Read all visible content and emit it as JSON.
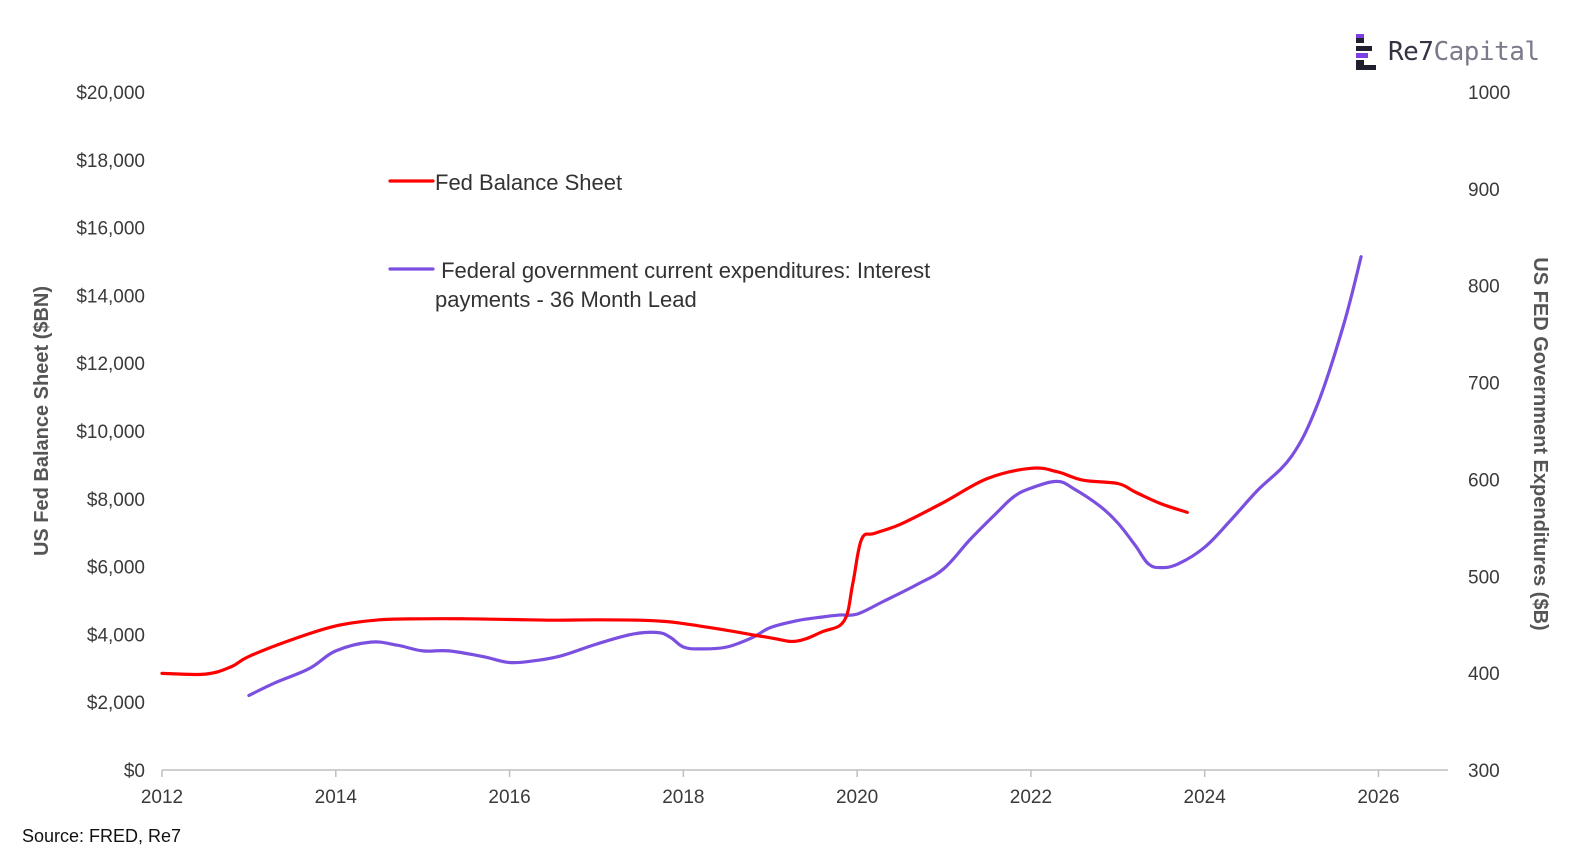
{
  "brand": {
    "name_part1": "Re7",
    "name_part2": "Capital",
    "colors": {
      "dark": "#1f1f2e",
      "purple": "#7b3fe4"
    }
  },
  "source": "Source: FRED, Re7",
  "chart_data": {
    "type": "line",
    "title": "",
    "xlabel": "",
    "ylabel": "US Fed Balance Sheet ($BN)",
    "ylabel_right": "US FED Government Expenditures ($B)",
    "xlim": [
      2012,
      2026.8
    ],
    "ylim": [
      0,
      20000
    ],
    "ylim_right": [
      300,
      1000
    ],
    "x_ticks": [
      {
        "value": 2012,
        "label": "2012"
      },
      {
        "value": 2014,
        "label": "2014"
      },
      {
        "value": 2016,
        "label": "2016"
      },
      {
        "value": 2018,
        "label": "2018"
      },
      {
        "value": 2020,
        "label": "2020"
      },
      {
        "value": 2022,
        "label": "2022"
      },
      {
        "value": 2024,
        "label": "2024"
      },
      {
        "value": 2026,
        "label": "2026"
      }
    ],
    "y_ticks": [
      {
        "value": 0,
        "label": "$0"
      },
      {
        "value": 2000,
        "label": "$2,000"
      },
      {
        "value": 4000,
        "label": "$4,000"
      },
      {
        "value": 6000,
        "label": "$6,000"
      },
      {
        "value": 8000,
        "label": "$8,000"
      },
      {
        "value": 10000,
        "label": "$10,000"
      },
      {
        "value": 12000,
        "label": "$12,000"
      },
      {
        "value": 14000,
        "label": "$14,000"
      },
      {
        "value": 16000,
        "label": "$16,000"
      },
      {
        "value": 18000,
        "label": "$18,000"
      },
      {
        "value": 20000,
        "label": "$20,000"
      }
    ],
    "y_ticks_right": [
      {
        "value": 300,
        "label": "300"
      },
      {
        "value": 400,
        "label": "400"
      },
      {
        "value": 500,
        "label": "500"
      },
      {
        "value": 600,
        "label": "600"
      },
      {
        "value": 700,
        "label": "700"
      },
      {
        "value": 800,
        "label": "800"
      },
      {
        "value": 900,
        "label": "900"
      },
      {
        "value": 1000,
        "label": "1000"
      }
    ],
    "legend_position": "upper-left",
    "series": [
      {
        "name": "Fed Balance Sheet",
        "legend_lines": [
          "Fed Balance Sheet"
        ],
        "axis": "left",
        "color": "#ff0000",
        "x": [
          2012.0,
          2012.5,
          2012.8,
          2013.0,
          2013.5,
          2014.0,
          2014.5,
          2015.0,
          2015.5,
          2016.0,
          2016.5,
          2017.0,
          2017.5,
          2017.8,
          2018.0,
          2018.5,
          2019.0,
          2019.3,
          2019.6,
          2019.85,
          2019.95,
          2020.05,
          2020.2,
          2020.5,
          2021.0,
          2021.5,
          2022.0,
          2022.3,
          2022.6,
          2023.0,
          2023.2,
          2023.5,
          2023.8
        ],
        "y": [
          2850,
          2830,
          3050,
          3350,
          3850,
          4250,
          4430,
          4460,
          4460,
          4440,
          4420,
          4430,
          4420,
          4380,
          4320,
          4120,
          3900,
          3800,
          4080,
          4400,
          5500,
          6800,
          6980,
          7250,
          7900,
          8600,
          8900,
          8800,
          8550,
          8450,
          8200,
          7850,
          7600
        ]
      },
      {
        "name": "Federal government current expenditures: Interest payments - 36 Month Lead",
        "legend_lines": [
          " Federal government current expenditures: Interest",
          "payments - 36 Month Lead"
        ],
        "axis": "right",
        "color": "#7b4fe0",
        "x": [
          2013.0,
          2013.3,
          2013.7,
          2014.0,
          2014.4,
          2014.7,
          2015.0,
          2015.3,
          2015.7,
          2016.0,
          2016.3,
          2016.6,
          2017.0,
          2017.4,
          2017.7,
          2017.85,
          2018.0,
          2018.2,
          2018.5,
          2018.8,
          2019.0,
          2019.3,
          2019.6,
          2019.8,
          2020.0,
          2020.3,
          2020.7,
          2021.0,
          2021.3,
          2021.6,
          2021.8,
          2022.0,
          2022.3,
          2022.5,
          2022.8,
          2023.0,
          2023.2,
          2023.35,
          2023.5,
          2023.7,
          2024.0,
          2024.3,
          2024.6,
          2025.0,
          2025.3,
          2025.6,
          2025.8
        ],
        "y": [
          377,
          390,
          405,
          423,
          432,
          429,
          423,
          423,
          417,
          411,
          413,
          418,
          430,
          440,
          442,
          437,
          427,
          425,
          427,
          437,
          447,
          454,
          458,
          460,
          461,
          474,
          492,
          508,
          538,
          565,
          582,
          591,
          598,
          590,
          572,
          555,
          532,
          513,
          509,
          513,
          530,
          558,
          588,
          624,
          678,
          760,
          830
        ]
      }
    ]
  }
}
